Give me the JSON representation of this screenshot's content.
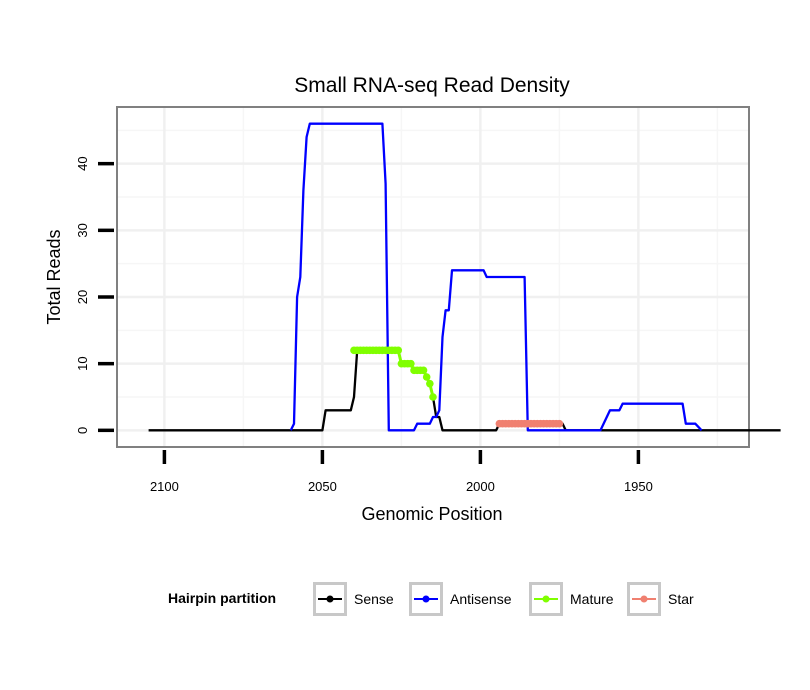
{
  "chart_data": {
    "type": "line",
    "title": "Small RNA-seq Read Density",
    "xlabel": "Genomic Position",
    "ylabel": "Total Reads",
    "x_reversed": true,
    "xlim": [
      2115,
      1915
    ],
    "ylim": [
      -2.5,
      48.5
    ],
    "x_ticks": [
      2100,
      2050,
      2000,
      1950
    ],
    "y_ticks": [
      0,
      10,
      20,
      30,
      40
    ],
    "grid": true,
    "legend_title": "Hairpin partition",
    "legend_position": "bottom",
    "series": [
      {
        "name": "Sense",
        "color": "#000000",
        "markers": false,
        "points": [
          [
            2105,
            0
          ],
          [
            2050,
            0
          ],
          [
            2049,
            3
          ],
          [
            2041,
            3
          ],
          [
            2040,
            5
          ],
          [
            2039,
            12
          ],
          [
            2026,
            12
          ],
          [
            2025,
            10
          ],
          [
            2022,
            10
          ],
          [
            2021,
            9
          ],
          [
            2018,
            9
          ],
          [
            2017,
            8
          ],
          [
            2016,
            7
          ],
          [
            2015,
            5
          ],
          [
            2014,
            2
          ],
          [
            2013,
            2
          ],
          [
            2012,
            0
          ],
          [
            1995,
            0
          ],
          [
            1994,
            1
          ],
          [
            1975,
            1
          ],
          [
            1974,
            1
          ],
          [
            1973,
            0
          ],
          [
            1905,
            0
          ]
        ]
      },
      {
        "name": "Antisense",
        "color": "#0000FF",
        "markers": false,
        "points": [
          [
            2060,
            0
          ],
          [
            2059,
            1
          ],
          [
            2058,
            20
          ],
          [
            2057,
            23
          ],
          [
            2056,
            36
          ],
          [
            2055,
            44
          ],
          [
            2054,
            46
          ],
          [
            2031,
            46
          ],
          [
            2030,
            37
          ],
          [
            2029,
            0
          ],
          [
            2021,
            0
          ],
          [
            2020,
            1
          ],
          [
            2016,
            1
          ],
          [
            2015,
            2
          ],
          [
            2014,
            2
          ],
          [
            2013,
            3
          ],
          [
            2012,
            14
          ],
          [
            2011,
            18
          ],
          [
            2010,
            18
          ],
          [
            2009,
            24
          ],
          [
            1999,
            24
          ],
          [
            1998,
            23
          ],
          [
            1986,
            23
          ],
          [
            1985,
            0
          ],
          [
            1962,
            0
          ],
          [
            1959,
            3
          ],
          [
            1956,
            3
          ],
          [
            1955,
            4
          ],
          [
            1936,
            4
          ],
          [
            1935,
            1
          ],
          [
            1932,
            1
          ],
          [
            1930,
            0
          ]
        ]
      },
      {
        "name": "Mature",
        "color": "#80FF00",
        "markers": true,
        "points": [
          [
            2040,
            12
          ],
          [
            2039,
            12
          ],
          [
            2038,
            12
          ],
          [
            2037,
            12
          ],
          [
            2036,
            12
          ],
          [
            2035,
            12
          ],
          [
            2034,
            12
          ],
          [
            2033,
            12
          ],
          [
            2032,
            12
          ],
          [
            2031,
            12
          ],
          [
            2030,
            12
          ],
          [
            2029,
            12
          ],
          [
            2028,
            12
          ],
          [
            2027,
            12
          ],
          [
            2026,
            12
          ],
          [
            2025,
            10
          ],
          [
            2024,
            10
          ],
          [
            2023,
            10
          ],
          [
            2022,
            10
          ],
          [
            2021,
            9
          ],
          [
            2020,
            9
          ],
          [
            2019,
            9
          ],
          [
            2018,
            9
          ],
          [
            2017,
            8
          ],
          [
            2016,
            7
          ],
          [
            2015,
            5
          ]
        ]
      },
      {
        "name": "Star",
        "color": "#F08070",
        "markers": true,
        "points": [
          [
            1994,
            1
          ],
          [
            1993,
            1
          ],
          [
            1992,
            1
          ],
          [
            1991,
            1
          ],
          [
            1990,
            1
          ],
          [
            1989,
            1
          ],
          [
            1988,
            1
          ],
          [
            1987,
            1
          ],
          [
            1986,
            1
          ],
          [
            1985,
            1
          ],
          [
            1984,
            1
          ],
          [
            1983,
            1
          ],
          [
            1982,
            1
          ],
          [
            1981,
            1
          ],
          [
            1980,
            1
          ],
          [
            1979,
            1
          ],
          [
            1978,
            1
          ],
          [
            1977,
            1
          ],
          [
            1976,
            1
          ],
          [
            1975,
            1
          ]
        ]
      }
    ]
  }
}
